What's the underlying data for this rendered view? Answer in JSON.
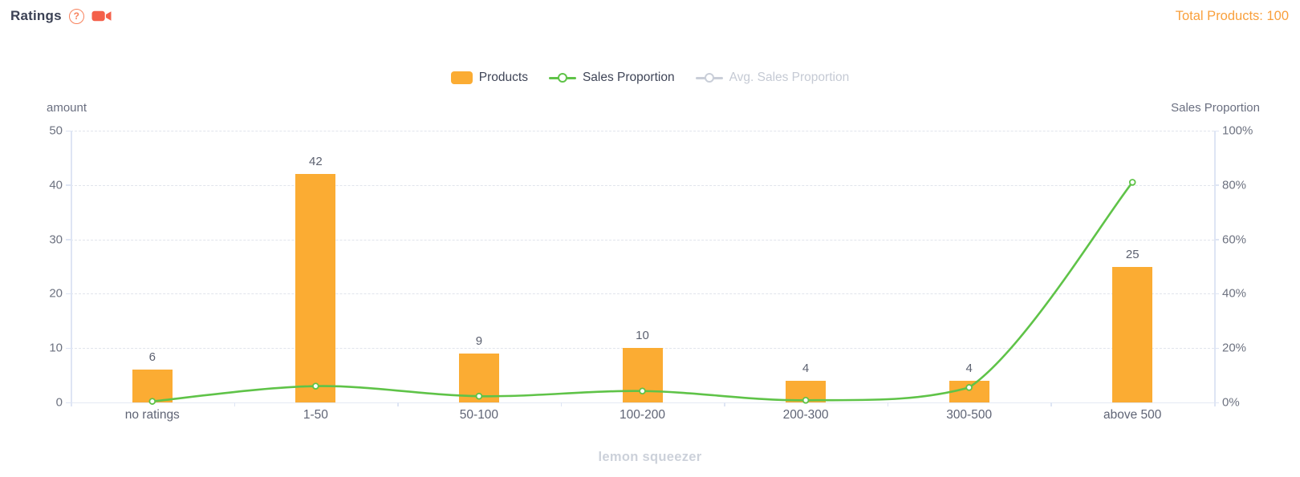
{
  "header": {
    "title": "Ratings",
    "help_icon": "question-mark-icon",
    "video_icon": "video-camera-icon",
    "icon_color": "#f4604a",
    "total_products_label": "Total Products: 100"
  },
  "legend": {
    "items": [
      {
        "label": "Products",
        "marker": "bar-swatch",
        "color": "#fbac33",
        "active": true
      },
      {
        "label": "Sales Proportion",
        "marker": "line-dot",
        "color": "#5fc348",
        "active": true
      },
      {
        "label": "Avg. Sales Proportion",
        "marker": "line-dot",
        "color": "#c9ced8",
        "active": false
      }
    ]
  },
  "chart_data": {
    "type": "bar+line combo",
    "categories": [
      "no ratings",
      "1-50",
      "50-100",
      "100-200",
      "200-300",
      "300-500",
      "above 500"
    ],
    "series": [
      {
        "name": "Products",
        "type": "bar",
        "axis": "left",
        "color": "#fbac33",
        "values": [
          6,
          42,
          9,
          10,
          4,
          4,
          25
        ]
      },
      {
        "name": "Sales Proportion",
        "type": "line",
        "axis": "right",
        "color": "#5fc348",
        "values_pct": [
          0.4,
          6,
          2.3,
          4.2,
          0.8,
          5.5,
          81
        ]
      },
      {
        "name": "Avg. Sales Proportion",
        "type": "line",
        "axis": "right",
        "color": "#c9ced8",
        "disabled": true
      }
    ],
    "left_axis": {
      "title": "amount",
      "ticks": [
        0,
        10,
        20,
        30,
        40,
        50
      ],
      "range": [
        0,
        50
      ]
    },
    "right_axis": {
      "title": "Sales Proportion",
      "ticks": [
        "0%",
        "20%",
        "40%",
        "60%",
        "80%",
        "100%"
      ],
      "range": [
        0,
        100
      ]
    },
    "grid": "horizontal dashed",
    "legend_position": "top-center"
  },
  "footer": {
    "caption": "lemon squeezer"
  }
}
